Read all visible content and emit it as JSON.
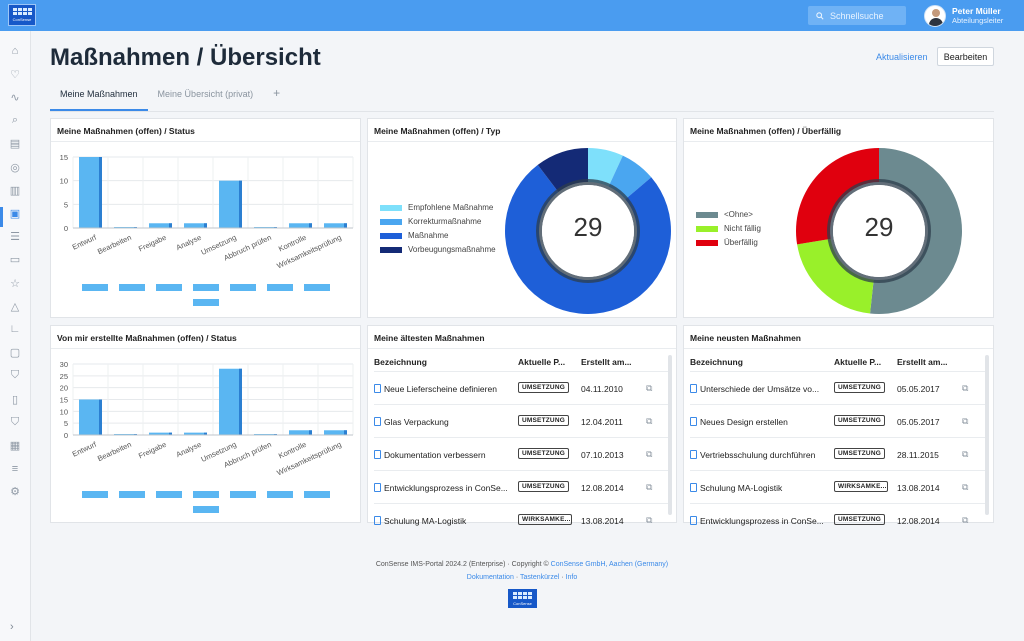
{
  "app": {
    "logo_text": "ConSense"
  },
  "search": {
    "placeholder": "Schnellsuche"
  },
  "user": {
    "name": "Peter Müller",
    "role": "Abteilungsleiter"
  },
  "header": {
    "title": "Maßnahmen / Übersicht",
    "refresh_label": "Aktualisieren",
    "edit_label": "Bearbeiten"
  },
  "tabs": [
    {
      "label": "Meine Maßnahmen"
    },
    {
      "label": "Meine Übersicht (privat)"
    },
    {
      "label": "+"
    }
  ],
  "cards": {
    "status": {
      "title": "Meine Maßnahmen (offen) / Status"
    },
    "typ": {
      "title": "Meine Maßnahmen (offen) / Typ",
      "total": "29"
    },
    "overdue": {
      "title": "Meine Maßnahmen (offen) / Überfällig",
      "total": "29"
    },
    "created": {
      "title": "Von mir erstellte Maßnahmen (offen) / Status"
    },
    "oldest": {
      "title": "Meine ältesten Maßnahmen"
    },
    "newest": {
      "title": "Meine neusten Maßnahmen"
    }
  },
  "chart_data": [
    {
      "type": "bar",
      "title": "Meine Maßnahmen (offen) / Status",
      "categories": [
        "Entwurf",
        "Bearbeiten",
        "Freigabe",
        "Analyse",
        "Umsetzung",
        "Abbruch prüfen",
        "Kontrolle",
        "Wirksamkeitsprüfung"
      ],
      "values": [
        15,
        0,
        1,
        1,
        10,
        0,
        1,
        1
      ],
      "ylim": [
        0,
        15
      ],
      "yticks": [
        0,
        5,
        10,
        15
      ],
      "grid": true,
      "color": "#5ab6f2"
    },
    {
      "type": "bar",
      "title": "Von mir erstellte Maßnahmen (offen) / Status",
      "categories": [
        "Entwurf",
        "Bearbeiten",
        "Freigabe",
        "Analyse",
        "Umsetzung",
        "Abbruch prüfen",
        "Kontrolle",
        "Wirksamkeitsprüfung"
      ],
      "values": [
        15,
        0,
        1,
        1,
        28,
        0,
        2,
        2
      ],
      "ylim": [
        0,
        30
      ],
      "yticks": [
        0,
        5,
        10,
        15,
        20,
        25,
        30
      ],
      "grid": true,
      "color": "#5ab6f2"
    },
    {
      "type": "pie",
      "title": "Meine Maßnahmen (offen) / Typ",
      "legend_position": "left",
      "slices": [
        {
          "label": "Empfohlene Maßnahme",
          "value": 2,
          "color": "#7ee0fb"
        },
        {
          "label": "Korrekturmaßnahme",
          "value": 2,
          "color": "#4aa6f0"
        },
        {
          "label": "Maßnahme",
          "value": 22,
          "color": "#1e5fd8"
        },
        {
          "label": "Vorbeugungsmaßnahme",
          "value": 3,
          "color": "#142a76"
        }
      ]
    },
    {
      "type": "pie",
      "title": "Meine Maßnahmen (offen) / Überfällig",
      "legend_position": "left",
      "slices": [
        {
          "label": "<Ohne>",
          "value": 15,
          "color": "#6c8a90"
        },
        {
          "label": "Nicht fällig",
          "value": 6,
          "color": "#99f02a"
        },
        {
          "label": "Überfällig",
          "value": 8,
          "color": "#e0000e"
        }
      ]
    }
  ],
  "oldest_table": {
    "columns": [
      "Bezeichnung",
      "Aktuelle P...",
      "Erstellt am..."
    ],
    "rows": [
      {
        "name": "Neue Lieferscheine definieren",
        "phase": "UMSETZUNG",
        "date": "04.11.2010"
      },
      {
        "name": "Glas Verpackung",
        "phase": "UMSETZUNG",
        "date": "12.04.2011"
      },
      {
        "name": "Dokumentation verbessern",
        "phase": "UMSETZUNG",
        "date": "07.10.2013"
      },
      {
        "name": "Entwicklungsprozess in ConSe...",
        "phase": "UMSETZUNG",
        "date": "12.08.2014"
      },
      {
        "name": "Schulung MA-Logistik",
        "phase": "WIRKSAMKE...",
        "date": "13.08.2014"
      }
    ]
  },
  "newest_table": {
    "columns": [
      "Bezeichnung",
      "Aktuelle P...",
      "Erstellt am..."
    ],
    "rows": [
      {
        "name": "Unterschiede der Umsätze vo...",
        "phase": "UMSETZUNG",
        "date": "05.05.2017"
      },
      {
        "name": "Neues Design erstellen",
        "phase": "UMSETZUNG",
        "date": "05.05.2017"
      },
      {
        "name": "Vertriebsschulung durchführen",
        "phase": "UMSETZUNG",
        "date": "28.11.2015"
      },
      {
        "name": "Schulung MA-Logistik",
        "phase": "WIRKSAMKE...",
        "date": "13.08.2014"
      },
      {
        "name": "Entwicklungsprozess in ConSe...",
        "phase": "UMSETZUNG",
        "date": "12.08.2014"
      }
    ]
  },
  "footer": {
    "line1_prefix": "ConSense IMS-Portal 2024.2 (Enterprise) · Copyright ©",
    "company_link": "ConSense GmbH, Aachen (Germany)",
    "links": [
      "Dokumentation",
      "Tastenkürzel",
      "Info"
    ],
    "separator": "·"
  },
  "icons": {
    "search": "search-icon",
    "sidebar": [
      "home-icon",
      "heart-icon",
      "activity-icon",
      "search-icon",
      "document-icon",
      "globe-icon",
      "files-icon",
      "clipboard-icon",
      "list-icon",
      "chat-icon",
      "star-icon",
      "warning-icon",
      "shoe-icon",
      "badge-icon",
      "shield-icon",
      "page-icon",
      "shield-check-icon",
      "calendar-icon",
      "chart-list-icon",
      "gear-icon"
    ]
  },
  "colors": {
    "accent": "#3b8ae8",
    "topbar": "#4a9cf0",
    "bar": "#5ab6f2"
  }
}
